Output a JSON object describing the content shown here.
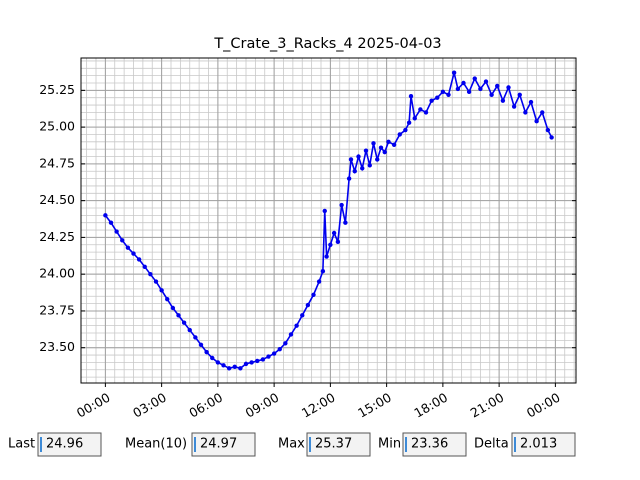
{
  "chart_data": {
    "type": "line",
    "title": "T_Crate_3_Racks_4 2025-04-03",
    "x": [
      0.0,
      0.3,
      0.6,
      0.9,
      1.2,
      1.5,
      1.8,
      2.1,
      2.4,
      2.7,
      3.0,
      3.3,
      3.6,
      3.9,
      4.2,
      4.5,
      4.8,
      5.1,
      5.4,
      5.7,
      6.0,
      6.3,
      6.6,
      6.9,
      7.2,
      7.5,
      7.8,
      8.1,
      8.4,
      8.7,
      9.0,
      9.3,
      9.6,
      9.9,
      10.2,
      10.5,
      10.8,
      11.1,
      11.4,
      11.6,
      11.7,
      11.8,
      12.0,
      12.2,
      12.4,
      12.6,
      12.8,
      13.0,
      13.1,
      13.3,
      13.5,
      13.7,
      13.9,
      14.1,
      14.3,
      14.5,
      14.7,
      14.9,
      15.1,
      15.4,
      15.7,
      16.0,
      16.2,
      16.3,
      16.5,
      16.8,
      17.1,
      17.4,
      17.7,
      18.0,
      18.3,
      18.6,
      18.8,
      19.1,
      19.4,
      19.7,
      20.0,
      20.3,
      20.6,
      20.9,
      21.2,
      21.5,
      21.8,
      22.1,
      22.4,
      22.7,
      23.0,
      23.3,
      23.6,
      23.8
    ],
    "series": [
      {
        "color": "#0000ee",
        "values": [
          24.4,
          24.35,
          24.29,
          24.23,
          24.18,
          24.14,
          24.1,
          24.05,
          24.0,
          23.95,
          23.89,
          23.83,
          23.77,
          23.72,
          23.67,
          23.62,
          23.57,
          23.52,
          23.47,
          23.43,
          23.4,
          23.38,
          23.36,
          23.37,
          23.36,
          23.39,
          23.4,
          23.41,
          23.42,
          23.44,
          23.46,
          23.49,
          23.53,
          23.59,
          23.65,
          23.72,
          23.79,
          23.86,
          23.95,
          24.02,
          24.43,
          24.12,
          24.2,
          24.28,
          24.22,
          24.47,
          24.35,
          24.65,
          24.78,
          24.7,
          24.8,
          24.72,
          24.84,
          24.74,
          24.89,
          24.78,
          24.86,
          24.83,
          24.9,
          24.88,
          24.95,
          24.98,
          25.03,
          25.21,
          25.06,
          25.12,
          25.1,
          25.18,
          25.2,
          25.24,
          25.22,
          25.37,
          25.26,
          25.3,
          25.24,
          25.33,
          25.26,
          25.31,
          25.22,
          25.28,
          25.18,
          25.27,
          25.14,
          25.22,
          25.1,
          25.17,
          25.04,
          25.1,
          24.98,
          24.93
        ]
      }
    ],
    "xlim": [
      -1.3,
      25.1
    ],
    "ylim": [
      23.26,
      25.47
    ],
    "xticks": [
      {
        "value": 0,
        "label": "00:00"
      },
      {
        "value": 3,
        "label": "03:00"
      },
      {
        "value": 6,
        "label": "06:00"
      },
      {
        "value": 9,
        "label": "09:00"
      },
      {
        "value": 12,
        "label": "12:00"
      },
      {
        "value": 15,
        "label": "15:00"
      },
      {
        "value": 18,
        "label": "18:00"
      },
      {
        "value": 21,
        "label": "21:00"
      },
      {
        "value": 24,
        "label": "00:00"
      }
    ],
    "yticks": [
      {
        "value": 23.5,
        "label": "23.50"
      },
      {
        "value": 23.75,
        "label": "23.75"
      },
      {
        "value": 24,
        "label": "24.00"
      },
      {
        "value": 24.25,
        "label": "24.25"
      },
      {
        "value": 24.5,
        "label": "24.50"
      },
      {
        "value": 24.75,
        "label": "24.75"
      },
      {
        "value": 25,
        "label": "25.00"
      },
      {
        "value": 25.25,
        "label": "25.25"
      }
    ],
    "grid": true,
    "minor_grid": true
  },
  "stats": [
    {
      "label": "Last",
      "value": 24.96
    },
    {
      "label": "Mean(10)",
      "value": 24.97
    },
    {
      "label": "Max",
      "value": 25.37
    },
    {
      "label": "Min",
      "value": 23.36
    },
    {
      "label": "Delta",
      "value": 2.013
    }
  ]
}
